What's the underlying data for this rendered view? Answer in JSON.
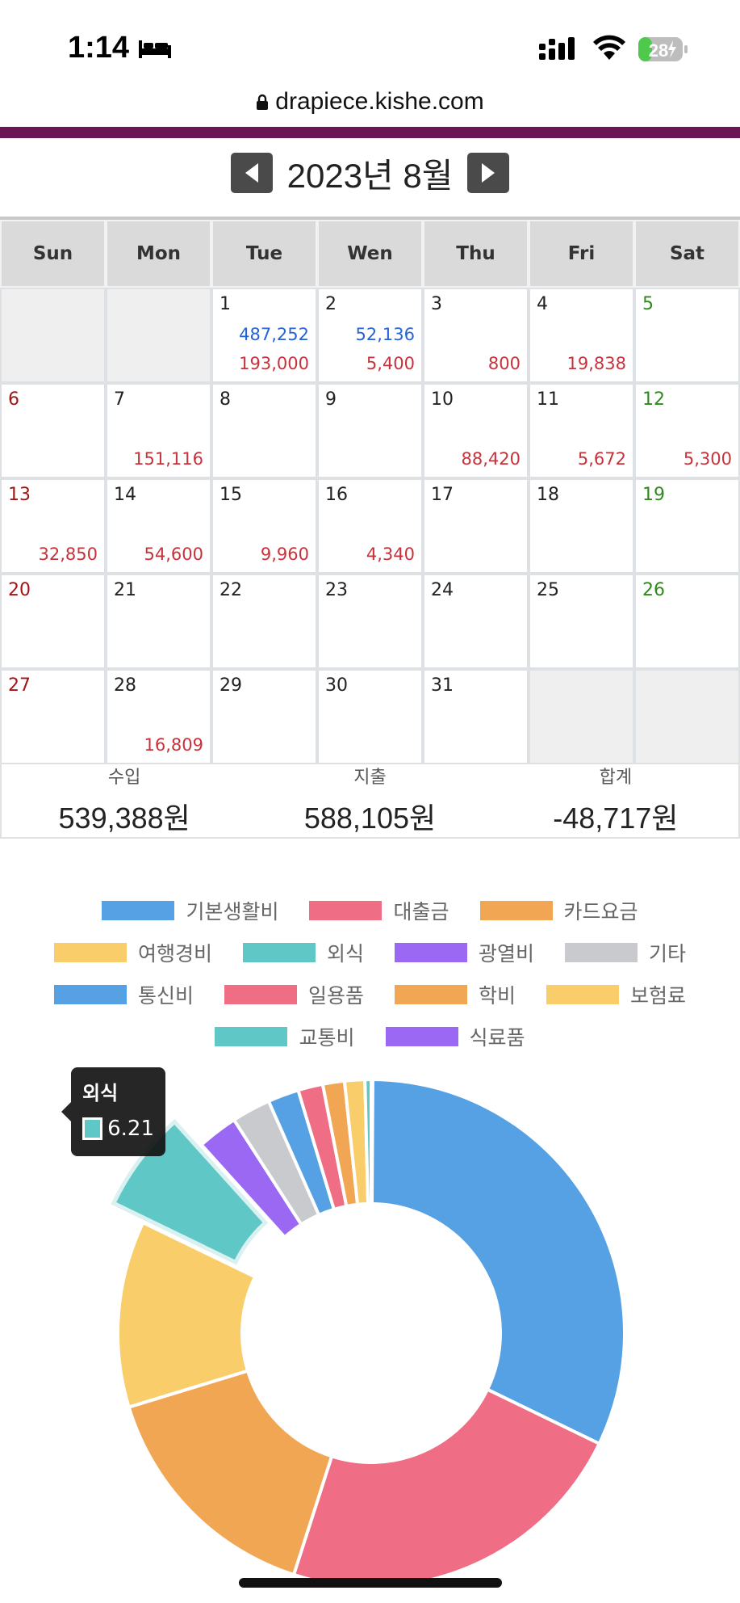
{
  "status_bar": {
    "time": "1:14",
    "battery": "28"
  },
  "browser": {
    "url": "drapiece.kishe.com"
  },
  "calendar": {
    "title": "2023년 8월",
    "weekdays": [
      "Sun",
      "Mon",
      "Tue",
      "Wen",
      "Thu",
      "Fri",
      "Sat"
    ],
    "weeks": [
      [
        {
          "day": "",
          "inc": "",
          "exp": ""
        },
        {
          "day": "",
          "inc": "",
          "exp": ""
        },
        {
          "day": "1",
          "inc": "487,252",
          "exp": "193,000"
        },
        {
          "day": "2",
          "inc": "52,136",
          "exp": "5,400"
        },
        {
          "day": "3",
          "inc": "",
          "exp": "800"
        },
        {
          "day": "4",
          "inc": "",
          "exp": "19,838"
        },
        {
          "day": "5",
          "inc": "",
          "exp": ""
        }
      ],
      [
        {
          "day": "6",
          "inc": "",
          "exp": ""
        },
        {
          "day": "7",
          "inc": "",
          "exp": "151,116"
        },
        {
          "day": "8",
          "inc": "",
          "exp": ""
        },
        {
          "day": "9",
          "inc": "",
          "exp": ""
        },
        {
          "day": "10",
          "inc": "",
          "exp": "88,420"
        },
        {
          "day": "11",
          "inc": "",
          "exp": "5,672"
        },
        {
          "day": "12",
          "inc": "",
          "exp": "5,300"
        }
      ],
      [
        {
          "day": "13",
          "inc": "",
          "exp": "32,850"
        },
        {
          "day": "14",
          "inc": "",
          "exp": "54,600"
        },
        {
          "day": "15",
          "inc": "",
          "exp": "9,960"
        },
        {
          "day": "16",
          "inc": "",
          "exp": "4,340"
        },
        {
          "day": "17",
          "inc": "",
          "exp": ""
        },
        {
          "day": "18",
          "inc": "",
          "exp": ""
        },
        {
          "day": "19",
          "inc": "",
          "exp": ""
        }
      ],
      [
        {
          "day": "20",
          "inc": "",
          "exp": ""
        },
        {
          "day": "21",
          "inc": "",
          "exp": ""
        },
        {
          "day": "22",
          "inc": "",
          "exp": ""
        },
        {
          "day": "23",
          "inc": "",
          "exp": ""
        },
        {
          "day": "24",
          "inc": "",
          "exp": ""
        },
        {
          "day": "25",
          "inc": "",
          "exp": ""
        },
        {
          "day": "26",
          "inc": "",
          "exp": ""
        }
      ],
      [
        {
          "day": "27",
          "inc": "",
          "exp": ""
        },
        {
          "day": "28",
          "inc": "",
          "exp": "16,809"
        },
        {
          "day": "29",
          "inc": "",
          "exp": ""
        },
        {
          "day": "30",
          "inc": "",
          "exp": ""
        },
        {
          "day": "31",
          "inc": "",
          "exp": ""
        },
        {
          "day": "",
          "inc": "",
          "exp": ""
        },
        {
          "day": "",
          "inc": "",
          "exp": ""
        }
      ]
    ]
  },
  "summary": {
    "income_label": "수입",
    "income_value": "539,388원",
    "expense_label": "지출",
    "expense_value": "588,105원",
    "total_label": "합계",
    "total_value": "-48,717원"
  },
  "tooltip": {
    "title": "외식",
    "value": "6.21"
  },
  "chart_data": {
    "type": "pie",
    "donut": true,
    "legend_position": "top",
    "categories": [
      "기본생활비",
      "대출금",
      "카드요금",
      "여행경비",
      "외식",
      "광열비",
      "기타",
      "통신비",
      "일용품",
      "학비",
      "보험료",
      "교통비",
      "식료품"
    ],
    "values": [
      32.5,
      23.0,
      15.5,
      12.0,
      6.21,
      2.6,
      2.5,
      2.0,
      1.6,
      1.4,
      1.3,
      0.4,
      0.0
    ],
    "colors": [
      "#56a0e4",
      "#ef6e85",
      "#f1a653",
      "#f8cd6a",
      "#5fc8c6",
      "#9a68f2",
      "#c8cacd",
      "#56a0e4",
      "#ef6e85",
      "#f1a653",
      "#f8cd6a",
      "#5fc8c6",
      "#9a68f2"
    ],
    "highlighted": "외식"
  }
}
